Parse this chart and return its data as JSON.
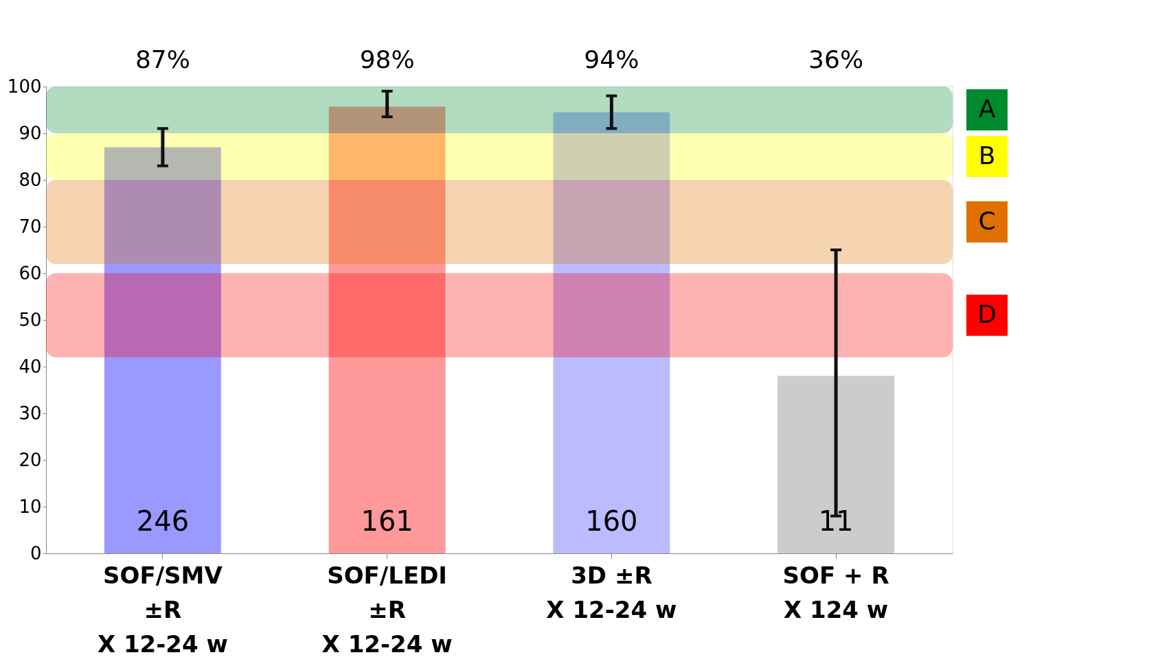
{
  "chart_data": {
    "type": "bar",
    "categories": [
      "SOF/SMV\n±R\nX 12-24 w",
      "SOF/LEDI\n±R\nX 12-24 w",
      "3D ±R\nX 12-24 w",
      "SOF + R\nX 124 w"
    ],
    "values": [
      87,
      95.7,
      94.5,
      38
    ],
    "colors": [
      "#9999ff",
      "#ff9999",
      "#bbbbff",
      "#cccccc"
    ],
    "errors": [
      [
        83,
        91
      ],
      [
        93.5,
        99
      ],
      [
        91,
        98
      ],
      [
        8,
        65
      ]
    ],
    "ylim": [
      0,
      100
    ],
    "yticks": [
      0,
      10,
      20,
      30,
      40,
      50,
      60,
      70,
      80,
      90,
      100
    ],
    "grid": false,
    "bands": [
      {
        "axis": "y",
        "from": 90,
        "to": 100,
        "label": "A",
        "color": "#008a2e"
      },
      {
        "axis": "y",
        "from": 80,
        "to": 90,
        "label": "B",
        "color": "#ffff00"
      },
      {
        "axis": "y",
        "from": 62,
        "to": 80,
        "label": "C",
        "color": "#e07000"
      },
      {
        "axis": "y",
        "from": 42,
        "to": 60,
        "label": "D",
        "color": "#ff0000"
      }
    ],
    "annotations": [
      "87%",
      "98%",
      "94%",
      "36%",
      "246",
      "161",
      "160",
      "11"
    ]
  }
}
